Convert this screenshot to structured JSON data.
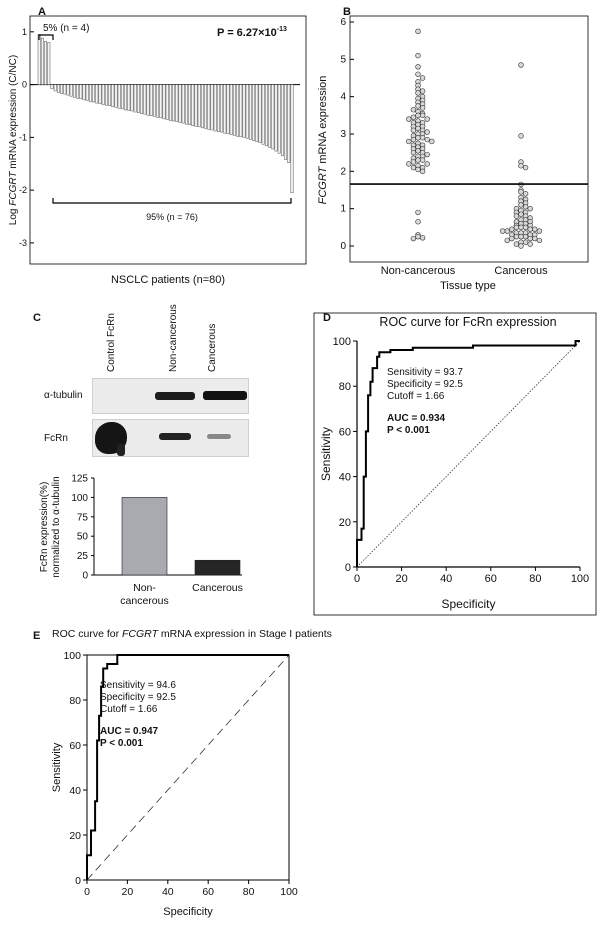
{
  "panels": {
    "a": {
      "letter": "A",
      "ylabel": "Log FCGRT mRNA expression (C/NC)",
      "ylabel_prefix": "Log ",
      "ylabel_italic": "FCGRT",
      "ylabel_suffix": " mRNA expression (C/NC)",
      "xlabel": "NSCLC patients (n=80)",
      "pvalue_base": "P = 6.27×10",
      "pvalue_exp": "-13",
      "bracket_up_label": "5% (n = 4)",
      "bracket_down_label": "95% (n = 76)"
    },
    "b": {
      "letter": "B",
      "ylabel": "FCGRT mRNA expression",
      "ylabel_italic": "FCGRT",
      "ylabel_suffix": " mRNA expression",
      "xlabel": "Tissue type"
    },
    "c": {
      "letter": "C",
      "lane_labels": [
        "Control FcRn",
        "Non-cancerous",
        "Cancerous"
      ],
      "row_labels": [
        "α-tubulin",
        "FcRn"
      ],
      "ylabel_line1": "FcRn expression(%)",
      "ylabel_line2": "normalized to α-tubulin"
    },
    "d": {
      "letter": "D"
    },
    "e": {
      "letter": "E"
    }
  },
  "colors": {
    "bar_light": "#a9a9b0",
    "bar_dark": "#262626",
    "scatter_fill": "#d8d8d8",
    "line": "#000000"
  },
  "chart_data": [
    {
      "id": "A",
      "type": "bar",
      "title": "",
      "xlabel": "NSCLC patients (n=80)",
      "ylabel": "Log FCGRT mRNA expression (C/NC)",
      "ylim": [
        -3.4,
        1.3
      ],
      "yticks": [
        1,
        0,
        -1,
        -2,
        -3
      ],
      "values": [
        0.95,
        0.88,
        0.82,
        0.8,
        -0.08,
        -0.12,
        -0.15,
        -0.17,
        -0.18,
        -0.2,
        -0.22,
        -0.24,
        -0.26,
        -0.27,
        -0.29,
        -0.3,
        -0.32,
        -0.33,
        -0.35,
        -0.36,
        -0.38,
        -0.39,
        -0.4,
        -0.42,
        -0.43,
        -0.45,
        -0.46,
        -0.48,
        -0.49,
        -0.5,
        -0.52,
        -0.53,
        -0.55,
        -0.56,
        -0.58,
        -0.59,
        -0.6,
        -0.62,
        -0.63,
        -0.65,
        -0.66,
        -0.68,
        -0.69,
        -0.7,
        -0.72,
        -0.73,
        -0.75,
        -0.76,
        -0.78,
        -0.79,
        -0.8,
        -0.82,
        -0.83,
        -0.85,
        -0.86,
        -0.88,
        -0.89,
        -0.9,
        -0.92,
        -0.93,
        -0.95,
        -0.96,
        -0.98,
        -0.99,
        -1.0,
        -1.02,
        -1.04,
        -1.06,
        -1.08,
        -1.1,
        -1.13,
        -1.16,
        -1.19,
        -1.22,
        -1.26,
        -1.3,
        -1.35,
        -1.42,
        -1.48,
        -2.05
      ],
      "annotations": [
        "5% (n = 4)",
        "95% (n = 76)",
        "P = 6.27×10-13"
      ]
    },
    {
      "id": "B",
      "type": "scatter",
      "xlabel": "Tissue type",
      "ylabel": "FCGRT mRNA expression",
      "categories": [
        "Non-cancerous",
        "Cancerous"
      ],
      "ylim": [
        0,
        6
      ],
      "yticks": [
        0,
        1,
        2,
        3,
        4,
        5,
        6
      ],
      "cutoff": 1.66,
      "series": [
        {
          "name": "Non-cancerous",
          "values": [
            5.75,
            5.1,
            4.8,
            4.6,
            4.5,
            4.4,
            4.3,
            4.2,
            4.15,
            4.1,
            4.0,
            3.95,
            3.9,
            3.85,
            3.8,
            3.75,
            3.7,
            3.65,
            3.6,
            3.55,
            3.5,
            3.5,
            3.45,
            3.4,
            3.4,
            3.35,
            3.3,
            3.3,
            3.25,
            3.2,
            3.2,
            3.15,
            3.1,
            3.1,
            3.05,
            3.0,
            3.0,
            2.95,
            2.9,
            2.9,
            2.85,
            2.85,
            2.8,
            2.8,
            2.75,
            2.7,
            2.7,
            2.65,
            2.6,
            2.6,
            2.55,
            2.5,
            2.5,
            2.45,
            2.4,
            2.4,
            2.35,
            2.3,
            2.3,
            2.25,
            2.2,
            2.2,
            2.15,
            2.1,
            2.1,
            2.05,
            2.0,
            0.9,
            0.65,
            0.3,
            0.25,
            0.22,
            0.2
          ]
        },
        {
          "name": "Cancerous",
          "values": [
            4.85,
            2.95,
            2.25,
            2.15,
            2.1,
            1.65,
            1.5,
            1.45,
            1.4,
            1.3,
            1.25,
            1.2,
            1.15,
            1.1,
            1.05,
            1.0,
            1.0,
            0.95,
            0.9,
            0.9,
            0.85,
            0.8,
            0.8,
            0.75,
            0.7,
            0.7,
            0.65,
            0.65,
            0.6,
            0.6,
            0.55,
            0.55,
            0.5,
            0.5,
            0.5,
            0.45,
            0.45,
            0.45,
            0.4,
            0.4,
            0.4,
            0.35,
            0.35,
            0.35,
            0.3,
            0.3,
            0.3,
            0.25,
            0.25,
            0.25,
            0.2,
            0.2,
            0.2,
            0.15,
            0.15,
            0.1,
            0.1,
            0.05,
            0.05,
            0.0
          ]
        }
      ]
    },
    {
      "id": "C",
      "type": "bar",
      "ylabel": "FcRn expression(%) normalized to α-tubulin",
      "categories": [
        "Non-cancerous",
        "Cancerous"
      ],
      "category_lines": [
        [
          "Non-",
          "cancerous"
        ],
        [
          "Cancerous"
        ]
      ],
      "values": [
        100,
        19
      ],
      "ylim": [
        0,
        125
      ],
      "yticks": [
        0,
        25,
        50,
        75,
        100,
        125
      ]
    },
    {
      "id": "D",
      "type": "line",
      "title": "ROC curve for FcRn expression",
      "xlabel": "Specificity",
      "ylabel": "Sensitivity",
      "xlim": [
        0,
        100
      ],
      "ylim": [
        0,
        100
      ],
      "ticks": [
        0,
        20,
        40,
        60,
        80,
        100
      ],
      "x": [
        0,
        0,
        2,
        2,
        3,
        3,
        4,
        4,
        5,
        5,
        6,
        6,
        7,
        7,
        9,
        9,
        10,
        10,
        15,
        15,
        25,
        25,
        52,
        52,
        98,
        98,
        100
      ],
      "y": [
        0,
        12,
        12,
        17,
        17,
        40,
        40,
        60,
        60,
        76,
        76,
        82,
        82,
        88,
        88,
        93,
        93,
        95,
        95,
        96,
        96,
        97,
        97,
        98,
        98,
        100,
        100
      ],
      "annotations": [
        "Sensitivity = 93.7",
        "Specificity = 92.5",
        "Cutoff = 1.66",
        "AUC = 0.934",
        "P < 0.001"
      ]
    },
    {
      "id": "E",
      "type": "line",
      "title": "ROC curve for FCGRT mRNA expression in Stage I patients",
      "xlabel": "Specificity",
      "ylabel": "Sensitivity",
      "xlim": [
        0,
        100
      ],
      "ylim": [
        0,
        100
      ],
      "ticks": [
        0,
        20,
        40,
        60,
        80,
        100
      ],
      "x": [
        0,
        0,
        2,
        2,
        4,
        4,
        5,
        5,
        6,
        6,
        7,
        7,
        8,
        8,
        10,
        10,
        15,
        15,
        100
      ],
      "y": [
        0,
        11,
        11,
        22,
        22,
        35,
        35,
        62,
        62,
        73,
        73,
        86,
        86,
        94,
        94,
        96,
        96,
        100,
        100
      ],
      "annotations": [
        "Sensitivity = 94.6",
        "Specificity = 92.5",
        "Cutoff = 1.66",
        "AUC = 0.947",
        "P < 0.001"
      ]
    }
  ]
}
